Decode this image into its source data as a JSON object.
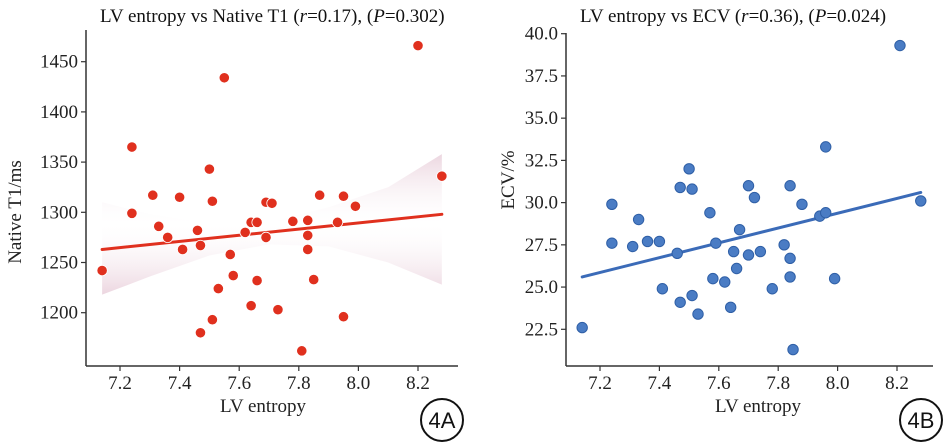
{
  "chart_data": [
    {
      "id": "4A",
      "type": "scatter",
      "title": "LV entropy vs Native T1 (r=0.17), (P=0.302)",
      "title_parts": {
        "prefix": "LV entropy vs Native T1 (",
        "r_symbol": "r",
        "r_value": "=0.17), (",
        "p_symbol": "P",
        "p_value": "=0.302)"
      },
      "xlabel": "LV entropy",
      "ylabel": "Native T1/ms",
      "panel_label": "4A",
      "xlim": [
        7.1,
        8.33
      ],
      "ylim": [
        1150,
        1478
      ],
      "xticks": [
        7.2,
        7.4,
        7.6,
        7.8,
        8.0,
        8.2
      ],
      "xtick_labels": [
        "7.2",
        "7.4",
        "7.6",
        "7.8",
        "8.0",
        "8.2"
      ],
      "yticks": [
        1200,
        1250,
        1300,
        1350,
        1400,
        1450
      ],
      "ytick_labels": [
        "1200",
        "1250",
        "1300",
        "1350",
        "1400",
        "1450"
      ],
      "point_color": "#e0301e",
      "line_color": "#e0301e",
      "band_color": "#c98aa6",
      "correlation_r": 0.17,
      "p_value": 0.302,
      "regression": {
        "x": [
          7.14,
          8.28
        ],
        "y": [
          1263,
          1298
        ]
      },
      "confidence_band": {
        "x": [
          7.14,
          7.3,
          7.5,
          7.7,
          7.9,
          8.1,
          8.28
        ],
        "upper": [
          1310,
          1298,
          1289,
          1290,
          1305,
          1325,
          1358
        ],
        "lower": [
          1218,
          1236,
          1257,
          1268,
          1266,
          1250,
          1228
        ]
      },
      "points": [
        [
          7.14,
          1242
        ],
        [
          7.24,
          1365
        ],
        [
          7.24,
          1299
        ],
        [
          7.31,
          1317
        ],
        [
          7.33,
          1286
        ],
        [
          7.36,
          1275
        ],
        [
          7.4,
          1315
        ],
        [
          7.41,
          1263
        ],
        [
          7.46,
          1282
        ],
        [
          7.47,
          1267
        ],
        [
          7.47,
          1180
        ],
        [
          7.5,
          1343
        ],
        [
          7.51,
          1311
        ],
        [
          7.51,
          1193
        ],
        [
          7.53,
          1224
        ],
        [
          7.55,
          1434
        ],
        [
          7.57,
          1258
        ],
        [
          7.58,
          1237
        ],
        [
          7.62,
          1280
        ],
        [
          7.64,
          1290
        ],
        [
          7.66,
          1290
        ],
        [
          7.64,
          1207
        ],
        [
          7.66,
          1232
        ],
        [
          7.69,
          1310
        ],
        [
          7.71,
          1309
        ],
        [
          7.69,
          1275
        ],
        [
          7.73,
          1203
        ],
        [
          7.78,
          1291
        ],
        [
          7.83,
          1292
        ],
        [
          7.83,
          1277
        ],
        [
          7.83,
          1263
        ],
        [
          7.81,
          1162
        ],
        [
          7.85,
          1233
        ],
        [
          7.87,
          1317
        ],
        [
          7.93,
          1290
        ],
        [
          7.95,
          1316
        ],
        [
          7.95,
          1196
        ],
        [
          7.99,
          1306
        ],
        [
          8.2,
          1466
        ],
        [
          8.28,
          1336
        ]
      ]
    },
    {
      "id": "4B",
      "type": "scatter",
      "title": "LV entropy vs ECV (r=0.36), (P=0.024)",
      "title_parts": {
        "prefix": "LV entropy vs ECV (",
        "r_symbol": "r",
        "r_value": "=0.36), (",
        "p_symbol": "P",
        "p_value": "=0.024)"
      },
      "xlabel": "LV entropy",
      "ylabel": "ECV/%",
      "panel_label": "4B",
      "xlim": [
        7.1,
        8.33
      ],
      "ylim": [
        20.5,
        40.0
      ],
      "xticks": [
        7.2,
        7.4,
        7.6,
        7.8,
        8.0,
        8.2
      ],
      "xtick_labels": [
        "7.2",
        "7.4",
        "7.6",
        "7.8",
        "8.0",
        "8.2"
      ],
      "yticks": [
        22.5,
        25.0,
        27.5,
        30.0,
        32.5,
        35.0,
        37.5,
        40.0
      ],
      "ytick_labels": [
        "22.5",
        "25.0",
        "27.5",
        "30.0",
        "32.5",
        "35.0",
        "37.5",
        "40.0"
      ],
      "point_color": "#4a7cc4",
      "point_edge": "#2f5fa6",
      "line_color": "#3b6bb8",
      "correlation_r": 0.36,
      "p_value": 0.024,
      "regression": {
        "x": [
          7.14,
          8.28
        ],
        "y": [
          25.6,
          30.6
        ]
      },
      "points": [
        [
          7.14,
          22.6
        ],
        [
          7.24,
          29.9
        ],
        [
          7.24,
          27.6
        ],
        [
          7.31,
          27.4
        ],
        [
          7.33,
          29.0
        ],
        [
          7.36,
          27.7
        ],
        [
          7.4,
          27.7
        ],
        [
          7.41,
          24.9
        ],
        [
          7.46,
          27.0
        ],
        [
          7.47,
          30.9
        ],
        [
          7.47,
          24.1
        ],
        [
          7.5,
          32.0
        ],
        [
          7.51,
          30.8
        ],
        [
          7.51,
          24.5
        ],
        [
          7.53,
          23.4
        ],
        [
          7.57,
          29.4
        ],
        [
          7.58,
          25.5
        ],
        [
          7.59,
          27.6
        ],
        [
          7.62,
          25.3
        ],
        [
          7.65,
          27.1
        ],
        [
          7.64,
          23.8
        ],
        [
          7.66,
          26.1
        ],
        [
          7.67,
          28.4
        ],
        [
          7.7,
          31.0
        ],
        [
          7.7,
          26.9
        ],
        [
          7.72,
          30.3
        ],
        [
          7.74,
          27.1
        ],
        [
          7.78,
          24.9
        ],
        [
          7.82,
          27.5
        ],
        [
          7.84,
          31.0
        ],
        [
          7.84,
          26.7
        ],
        [
          7.84,
          25.6
        ],
        [
          7.85,
          21.3
        ],
        [
          7.88,
          29.9
        ],
        [
          7.94,
          29.2
        ],
        [
          7.96,
          29.4
        ],
        [
          7.96,
          33.3
        ],
        [
          7.99,
          25.5
        ],
        [
          8.21,
          39.3
        ],
        [
          8.28,
          30.1
        ]
      ]
    }
  ]
}
